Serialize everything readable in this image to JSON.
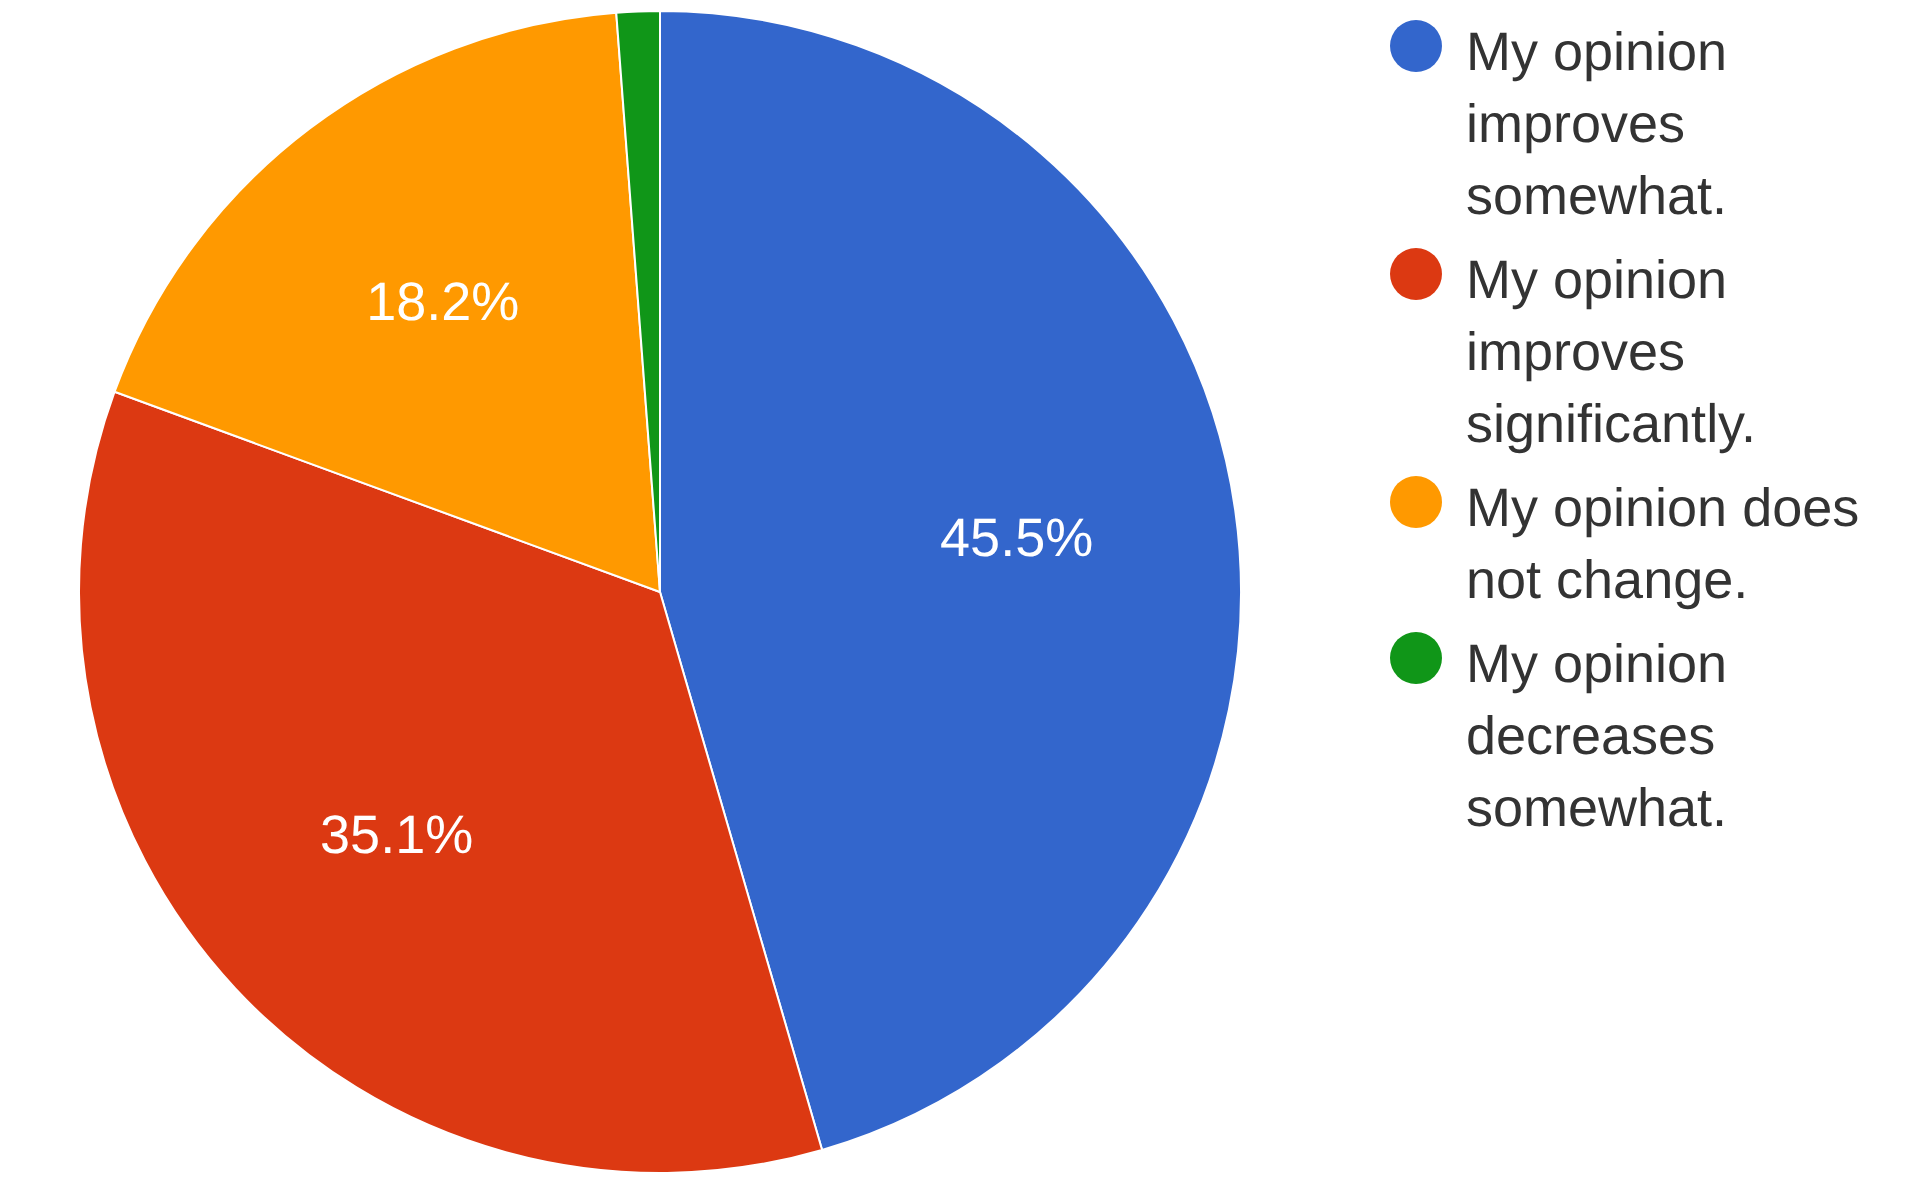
{
  "chart_data": {
    "type": "pie",
    "categories": [
      "My opinion improves somewhat.",
      "My opinion improves significantly.",
      "My opinion does not change.",
      "My opinion decreases somewhat."
    ],
    "values": [
      45.5,
      35.1,
      18.2,
      1.2
    ],
    "colors": [
      "#3366cc",
      "#dc3912",
      "#ff9900",
      "#109618"
    ],
    "value_labels": [
      "45.5%",
      "35.1%",
      "18.2%",
      null
    ],
    "legend": "right"
  }
}
